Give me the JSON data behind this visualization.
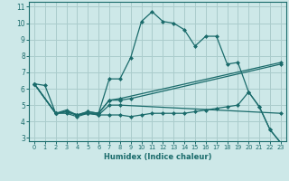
{
  "xlabel": "Humidex (Indice chaleur)",
  "xlim": [
    -0.5,
    23.5
  ],
  "ylim": [
    2.8,
    11.3
  ],
  "yticks": [
    3,
    4,
    5,
    6,
    7,
    8,
    9,
    10,
    11
  ],
  "xticks": [
    0,
    1,
    2,
    3,
    4,
    5,
    6,
    7,
    8,
    9,
    10,
    11,
    12,
    13,
    14,
    15,
    16,
    17,
    18,
    19,
    20,
    21,
    22,
    23
  ],
  "bg_color": "#cde8e8",
  "grid_color": "#aacccc",
  "line_color": "#1a6b6b",
  "lines": [
    {
      "x": [
        0,
        1,
        2,
        3,
        4,
        5,
        6,
        7,
        8,
        9,
        10,
        11,
        12,
        13,
        14,
        15,
        16,
        17,
        18,
        19,
        20,
        21,
        22,
        23
      ],
      "y": [
        6.3,
        6.2,
        4.5,
        4.6,
        4.4,
        4.5,
        4.5,
        6.6,
        6.6,
        7.9,
        10.1,
        10.7,
        10.1,
        10.0,
        9.6,
        8.6,
        9.2,
        9.2,
        7.5,
        7.6,
        5.8,
        4.9,
        3.5,
        2.7
      ]
    },
    {
      "x": [
        0,
        2,
        3,
        4,
        5,
        6,
        7,
        8,
        23
      ],
      "y": [
        6.3,
        4.5,
        4.6,
        4.4,
        4.6,
        4.5,
        5.3,
        5.4,
        7.6
      ]
    },
    {
      "x": [
        0,
        2,
        3,
        4,
        5,
        6,
        7,
        8,
        9,
        23
      ],
      "y": [
        6.3,
        4.5,
        4.7,
        4.4,
        4.6,
        4.5,
        5.3,
        5.3,
        5.4,
        7.5
      ]
    },
    {
      "x": [
        0,
        2,
        3,
        4,
        5,
        6,
        7,
        8,
        23
      ],
      "y": [
        6.3,
        4.5,
        4.5,
        4.3,
        4.5,
        4.4,
        5.0,
        5.0,
        4.5
      ]
    },
    {
      "x": [
        0,
        2,
        3,
        4,
        5,
        6,
        7,
        8,
        9,
        10,
        11,
        12,
        13,
        14,
        15,
        16,
        17,
        18,
        19,
        20,
        21,
        22,
        23
      ],
      "y": [
        6.3,
        4.5,
        4.6,
        4.4,
        4.5,
        4.4,
        4.4,
        4.4,
        4.3,
        4.4,
        4.5,
        4.5,
        4.5,
        4.5,
        4.6,
        4.7,
        4.8,
        4.9,
        5.0,
        5.8,
        4.9,
        3.5,
        2.7
      ]
    }
  ]
}
